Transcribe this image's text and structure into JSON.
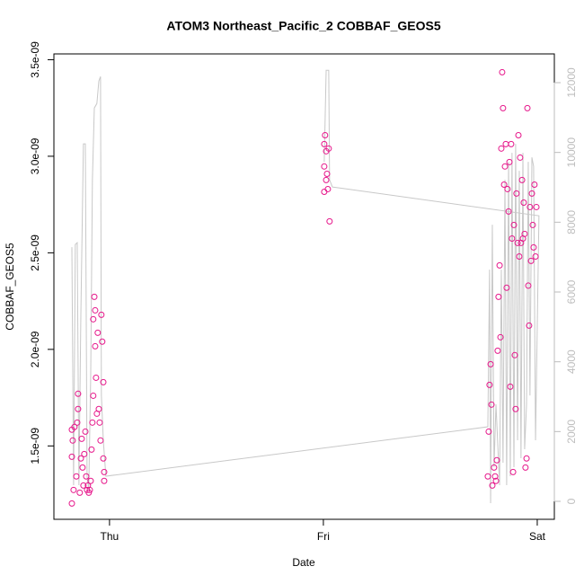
{
  "chart_data": {
    "type": "scatter",
    "title": "ATOM3 Northeast_Pacific_2 COBBAF_GEOS5",
    "xlabel": "Date",
    "ylabel": "COBBAF_GEOS5",
    "xlim": [
      -0.26,
      2.08
    ],
    "xticks": [
      {
        "value": 0,
        "label": "Thu"
      },
      {
        "value": 1,
        "label": "Fri"
      },
      {
        "value": 2,
        "label": "Sat"
      }
    ],
    "ylim": [
      1.12e-09,
      3.53e-09
    ],
    "yticks": [
      {
        "value": 1.5e-09,
        "label": "1.5e-09"
      },
      {
        "value": 2e-09,
        "label": "2.0e-09"
      },
      {
        "value": 2.5e-09,
        "label": "2.5e-09"
      },
      {
        "value": 3e-09,
        "label": "3.0e-09"
      },
      {
        "value": 3.5e-09,
        "label": "3.5e-09"
      }
    ],
    "y2lim": [
      -515,
      12824
    ],
    "y2ticks": [
      0,
      2000,
      4000,
      6000,
      8000,
      10000,
      12000
    ],
    "series": [
      {
        "type": "scatter",
        "color": "#e6168a",
        "x": [
          -0.176,
          -0.168,
          -0.176,
          -0.172,
          -0.176,
          -0.164,
          -0.155,
          -0.151,
          -0.147,
          -0.147,
          -0.139,
          -0.134,
          -0.13,
          -0.126,
          -0.122,
          -0.118,
          -0.113,
          -0.109,
          -0.105,
          -0.101,
          -0.097,
          -0.092,
          -0.088,
          -0.084,
          -0.08,
          -0.076,
          -0.076,
          -0.071,
          -0.067,
          -0.067,
          -0.063,
          -0.059,
          -0.055,
          -0.05,
          -0.046,
          -0.042,
          -0.038,
          -0.034,
          -0.029,
          -0.025,
          -0.025,
          -0.029,
          1.004,
          1.004,
          1.008,
          1.013,
          1.004,
          1.017,
          1.021,
          1.025,
          1.029,
          1.013,
          1.769,
          1.773,
          1.777,
          1.782,
          1.786,
          1.79,
          1.798,
          1.803,
          1.807,
          1.811,
          1.815,
          1.819,
          1.824,
          1.828,
          1.832,
          1.836,
          1.84,
          1.845,
          1.849,
          1.853,
          1.857,
          1.861,
          1.866,
          1.87,
          1.874,
          1.878,
          1.882,
          1.887,
          1.891,
          1.895,
          1.899,
          1.903,
          1.908,
          1.912,
          1.916,
          1.92,
          1.924,
          1.929,
          1.933,
          1.937,
          1.941,
          1.945,
          1.95,
          1.954,
          1.958,
          1.962,
          1.966,
          1.971,
          1.975,
          1.979,
          1.983,
          1.987,
          1.992,
          1.996
        ],
        "values": [
          1.202e-09,
          1.272e-09,
          1.444e-09,
          1.528e-09,
          1.584e-09,
          1.598e-09,
          1.342e-09,
          1.621e-09,
          1.691e-09,
          1.77e-09,
          1.258e-09,
          1.435e-09,
          1.537e-09,
          1.388e-09,
          1.295e-09,
          1.458e-09,
          1.574e-09,
          1.342e-09,
          1.272e-09,
          1.295e-09,
          1.258e-09,
          1.272e-09,
          1.319e-09,
          1.481e-09,
          1.621e-09,
          1.76e-09,
          2.156e-09,
          2.272e-09,
          2.202e-09,
          2.016e-09,
          1.853e-09,
          1.667e-09,
          2.086e-09,
          1.691e-09,
          1.621e-09,
          1.528e-09,
          2.179e-09,
          2.04e-09,
          1.435e-09,
          1.365e-09,
          1.319e-09,
          1.83e-09,
          3.063e-09,
          2.947e-09,
          3.109e-09,
          3.026e-09,
          2.816e-09,
          2.909e-09,
          2.83e-09,
          3.04e-09,
          2.663e-09,
          2.877e-09,
          1.342e-09,
          1.574e-09,
          1.816e-09,
          1.923e-09,
          1.714e-09,
          1.295e-09,
          1.388e-09,
          1.342e-09,
          1.319e-09,
          1.426e-09,
          1.993e-09,
          2.272e-09,
          2.435e-09,
          2.063e-09,
          3.04e-09,
          3.435e-09,
          3.249e-09,
          2.853e-09,
          2.947e-09,
          3.063e-09,
          2.319e-09,
          2.83e-09,
          2.714e-09,
          2.97e-09,
          1.807e-09,
          3.063e-09,
          2.574e-09,
          1.365e-09,
          2.644e-09,
          1.97e-09,
          1.691e-09,
          2.807e-09,
          2.551e-09,
          3.109e-09,
          2.481e-09,
          2.993e-09,
          2.551e-09,
          2.877e-09,
          2.574e-09,
          2.76e-09,
          2.598e-09,
          1.388e-09,
          1.435e-09,
          3.249e-09,
          2.33e-09,
          2.123e-09,
          2.737e-09,
          2.458e-09,
          2.807e-09,
          2.644e-09,
          2.528e-09,
          2.853e-09,
          2.481e-09,
          2.737e-09
        ]
      },
      {
        "type": "line",
        "color": "#c8c8c8",
        "axis": "y2",
        "x": [
          -0.176,
          -0.168,
          -0.16,
          -0.151,
          -0.143,
          -0.134,
          -0.122,
          -0.113,
          -0.105,
          -0.097,
          -0.088,
          -0.08,
          -0.071,
          -0.059,
          -0.05,
          -0.042,
          -0.038,
          -0.029,
          -0.017,
          1.769,
          1.777,
          1.782,
          1.79,
          1.798,
          1.807,
          1.824,
          1.832,
          1.84,
          1.849,
          1.857,
          1.866,
          1.874,
          1.882,
          1.891,
          1.899,
          1.908,
          1.916,
          1.924,
          1.933,
          1.941,
          1.95,
          1.958,
          1.966,
          1.975,
          1.983,
          1.992,
          2.008,
          1.042,
          1.029,
          1.025,
          1.013,
          1.004
        ],
        "values": [
          7284,
          463,
          7362,
          7413,
          463,
          5354,
          10245,
          10245,
          721,
          335,
          3552,
          9215,
          11274,
          11403,
          12046,
          12175,
          3037,
          1750,
          721,
          2136,
          6641,
          -51,
          7928,
          978,
          2780,
          463,
          6641,
          1107,
          9215,
          463,
          9730,
          721,
          9987,
          978,
          10245,
          1750,
          9472,
          1236,
          9987,
          1493,
          2780,
          9730,
          3037,
          9858,
          9601,
          1750,
          8185,
          9010,
          9215,
          12355,
          12355,
          9730
        ]
      }
    ]
  }
}
